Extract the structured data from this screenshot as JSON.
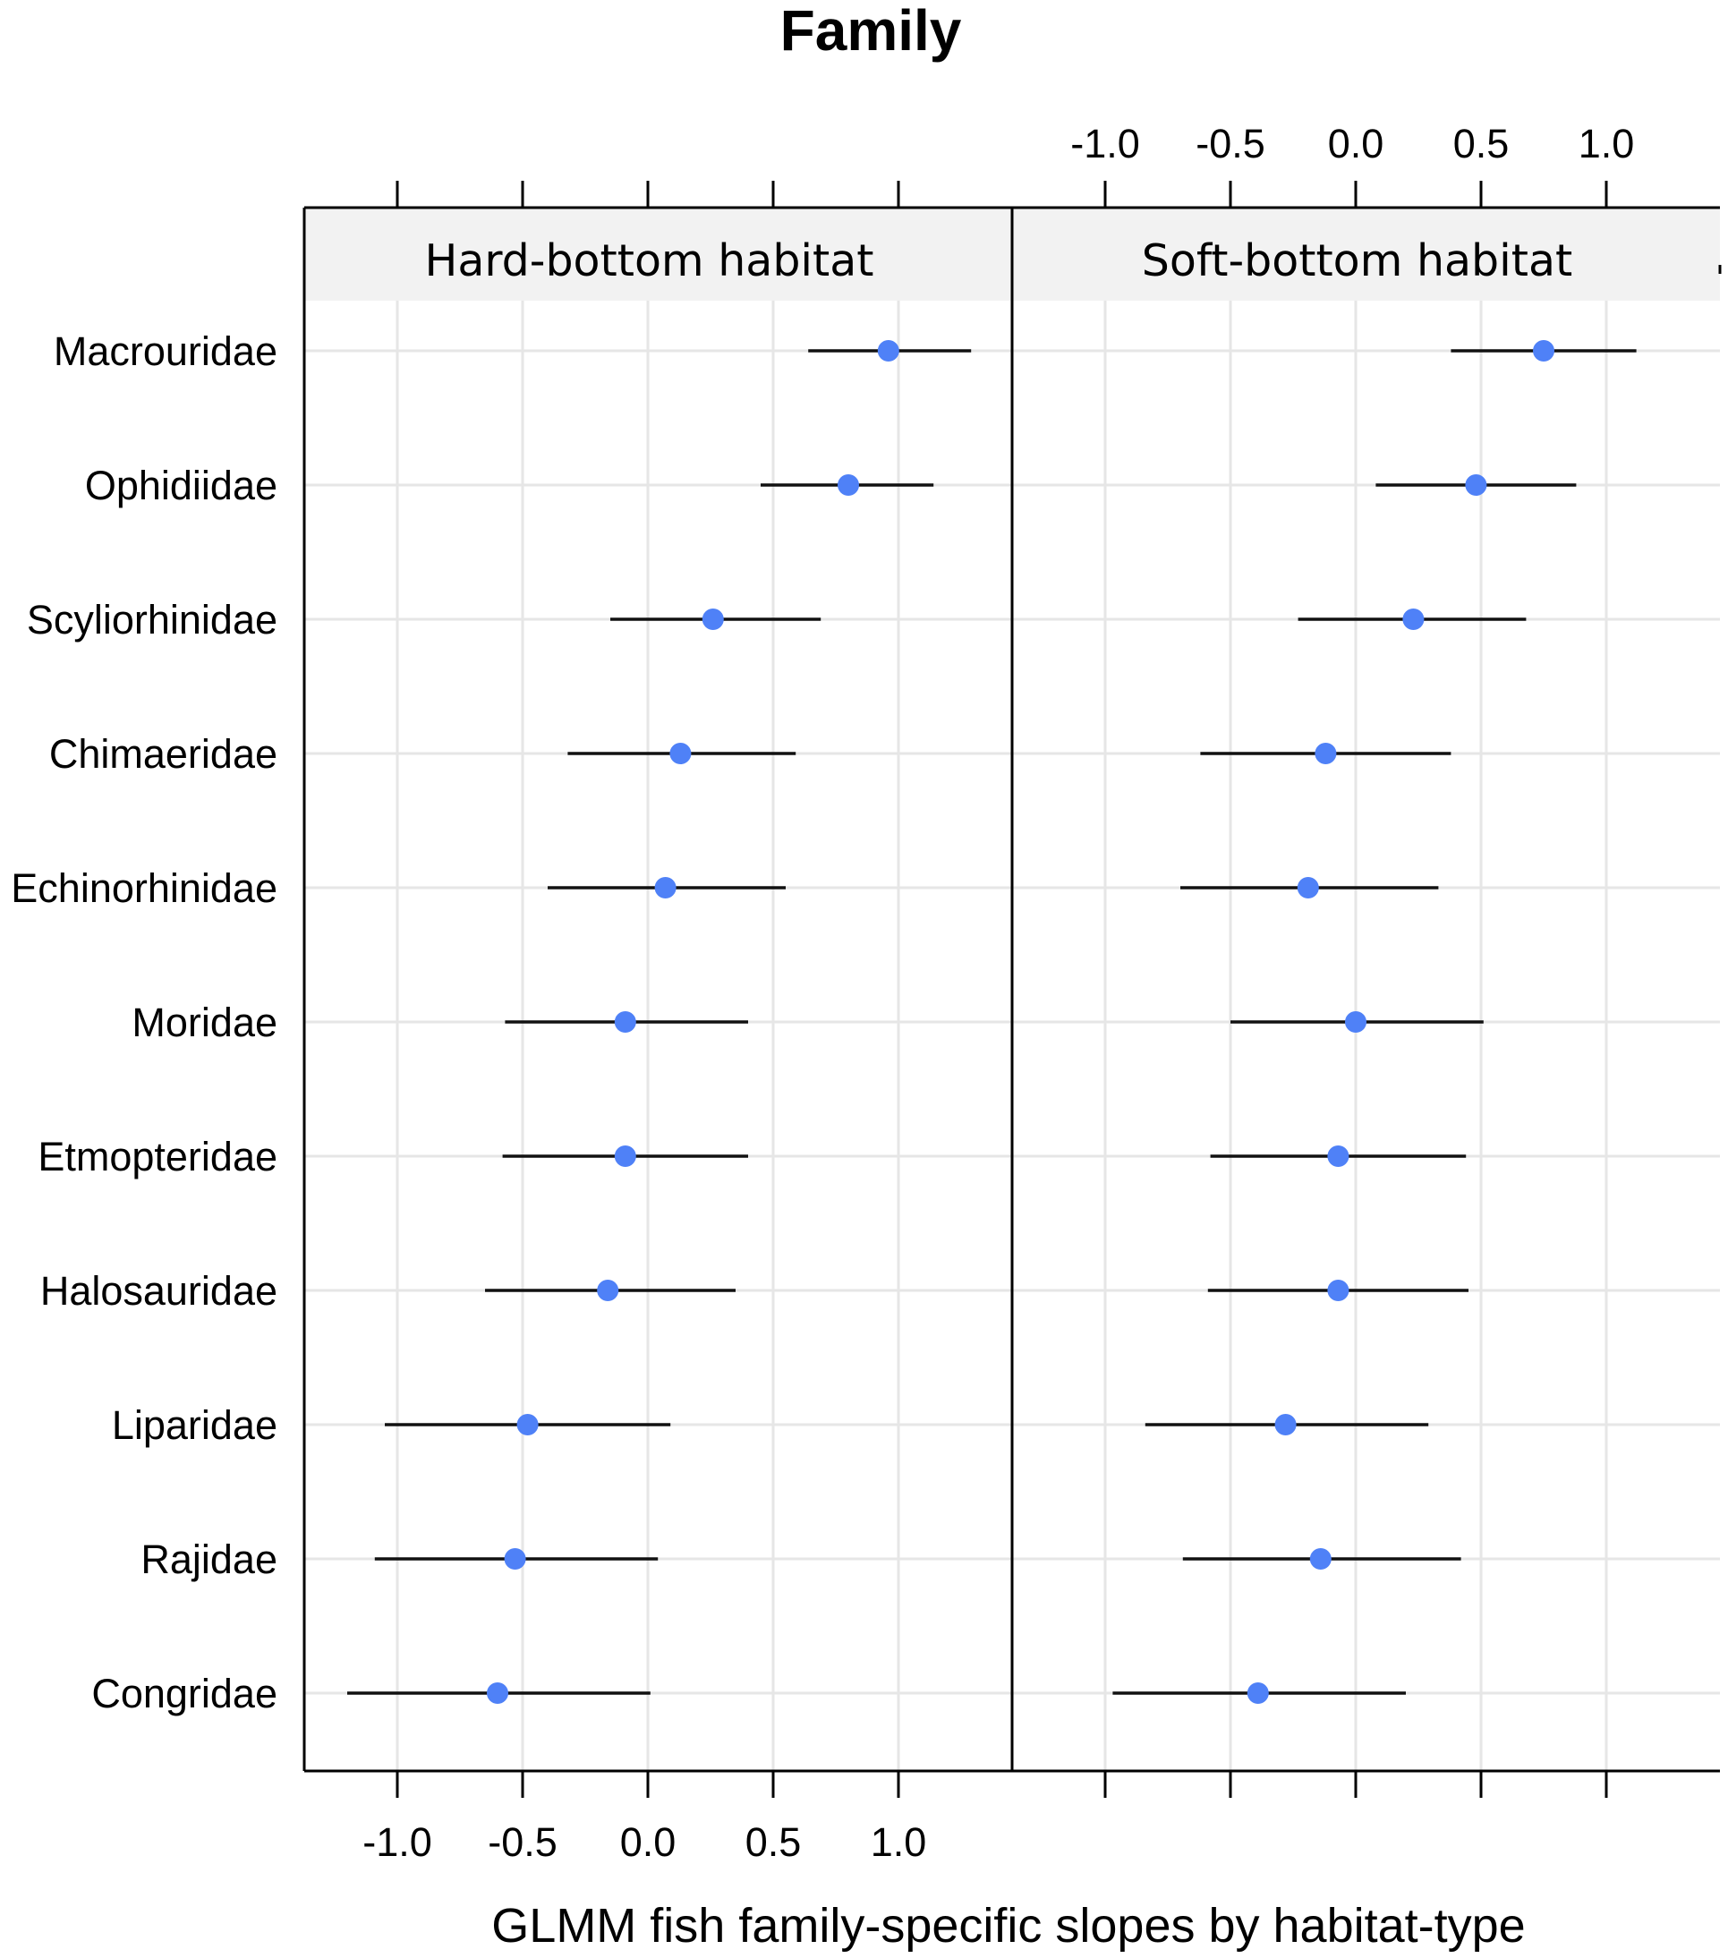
{
  "chart_data": {
    "type": "scatter",
    "subtype": "dot-and-whisker",
    "title": "Family",
    "xlabel": "GLMM fish family-specific slopes by habitat-type",
    "ylabel": "",
    "xlim": [
      -1.37,
      1.44
    ],
    "xticks": [
      -1.0,
      -0.5,
      0.0,
      0.5,
      1.0
    ],
    "xtick_labels": [
      "-1.0",
      "-0.5",
      "0.0",
      "0.5",
      "1.0"
    ],
    "grid": true,
    "point_color": "#4f81f7",
    "categories": [
      "Macrouridae",
      "Ophidiidae",
      "Scyliorhinidae",
      "Chimaeridae",
      "Echinorhinidae",
      "Moridae",
      "Etmopteridae",
      "Halosauridae",
      "Liparidae",
      "Rajidae",
      "Congridae"
    ],
    "panels": [
      {
        "name": "Hard-bottom habitat",
        "estimates": [
          0.96,
          0.8,
          0.26,
          0.13,
          0.07,
          -0.09,
          -0.09,
          -0.16,
          -0.48,
          -0.53,
          -0.6
        ],
        "lower": [
          0.64,
          0.45,
          -0.15,
          -0.32,
          -0.4,
          -0.57,
          -0.58,
          -0.65,
          -1.05,
          -1.09,
          -1.2
        ],
        "upper": [
          1.29,
          1.14,
          0.69,
          0.59,
          0.55,
          0.4,
          0.4,
          0.35,
          0.09,
          0.04,
          0.01
        ]
      },
      {
        "name": "Soft-bottom habitat",
        "estimates": [
          0.75,
          0.48,
          0.23,
          -0.12,
          -0.19,
          0.0,
          -0.07,
          -0.07,
          -0.28,
          -0.14,
          -0.39
        ],
        "lower": [
          0.38,
          0.08,
          -0.23,
          -0.62,
          -0.7,
          -0.5,
          -0.58,
          -0.59,
          -0.84,
          -0.69,
          -0.97
        ],
        "upper": [
          1.12,
          0.88,
          0.68,
          0.38,
          0.33,
          0.51,
          0.44,
          0.45,
          0.29,
          0.42,
          0.2
        ]
      }
    ]
  }
}
